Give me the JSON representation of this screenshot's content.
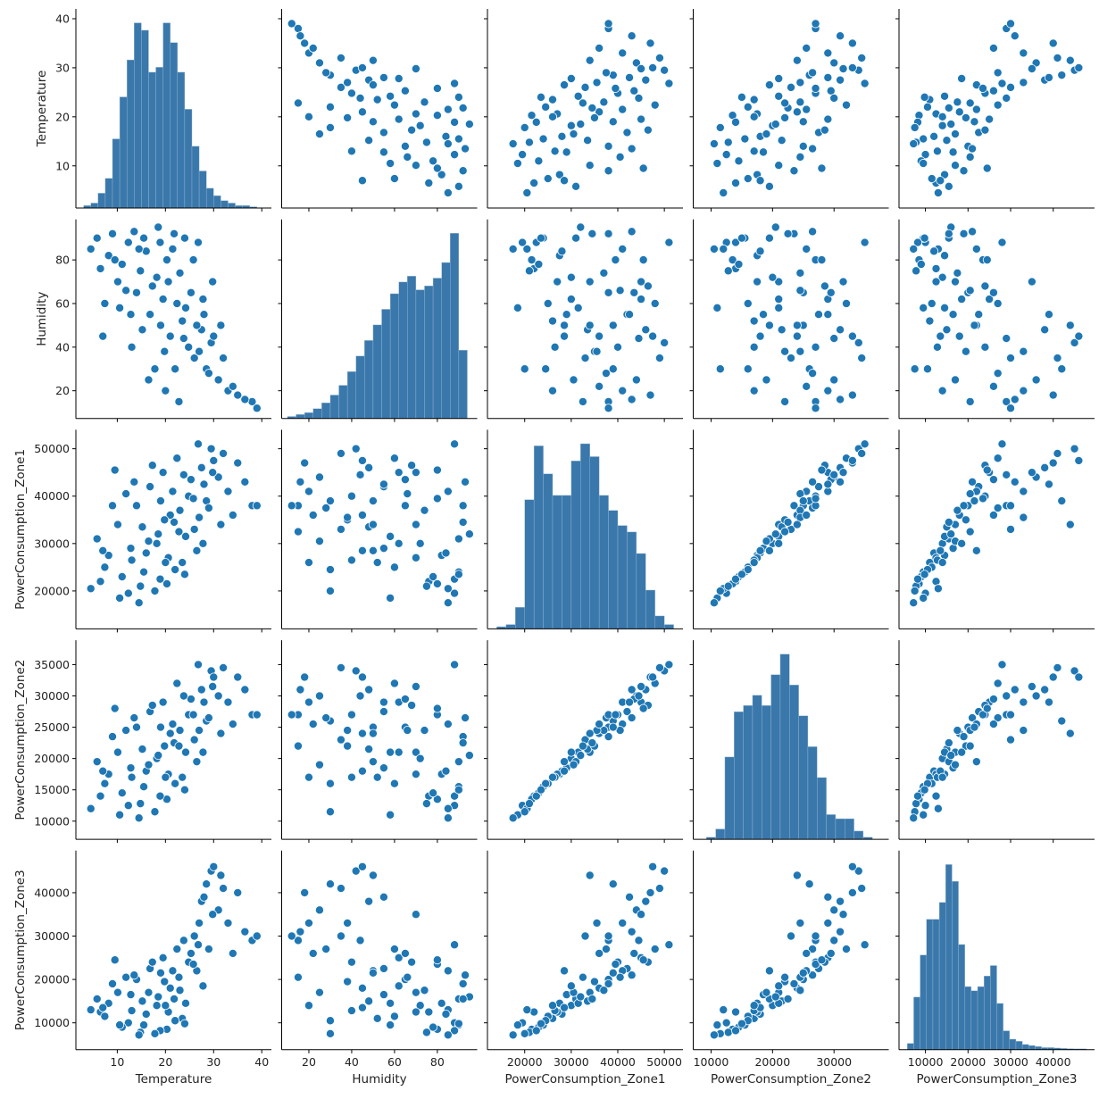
{
  "chart_data": {
    "type": "scatter",
    "kind": "pairplot",
    "diagonal": "histogram",
    "colors": {
      "marker": "#1f77b4",
      "marker_edge": "#ffffff",
      "hist": "#3a78ab",
      "axis": "#000000"
    },
    "grid": false,
    "variables": [
      {
        "name": "Temperature",
        "range": [
          1.4,
          42
        ],
        "ticks": [
          10,
          20,
          30,
          40
        ]
      },
      {
        "name": "Humidity",
        "range": [
          7.3,
          98.6
        ],
        "ticks": [
          20,
          40,
          60,
          80
        ]
      },
      {
        "name": "PowerConsumption_Zone1",
        "range": [
          12000,
          54000
        ],
        "ticks": [
          20000,
          30000,
          40000,
          50000
        ]
      },
      {
        "name": "PowerConsumption_Zone2",
        "range": [
          7100,
          38900
        ],
        "ticks": [
          10000,
          15000,
          20000,
          25000,
          30000,
          35000
        ],
        "x_ticks": [
          10000,
          20000,
          30000
        ]
      },
      {
        "name": "PowerConsumption_Zone3",
        "range": [
          3800,
          49700
        ],
        "ticks": [
          10000,
          20000,
          30000,
          40000
        ]
      }
    ],
    "rows": [
      [
        6.5,
        76,
        22000,
        14000,
        12500
      ],
      [
        8.2,
        82,
        27500,
        17500,
        14500
      ],
      [
        10.1,
        70,
        34000,
        21000,
        17000
      ],
      [
        12.3,
        88,
        19500,
        12500,
        10000
      ],
      [
        14.0,
        65,
        38000,
        25000,
        20000
      ],
      [
        15.5,
        90,
        24000,
        15500,
        9500
      ],
      [
        16.8,
        55,
        42000,
        27500,
        22500
      ],
      [
        18.2,
        72,
        30000,
        20000,
        14000
      ],
      [
        19.5,
        62,
        45000,
        29000,
        25000
      ],
      [
        20.3,
        80,
        21500,
        13500,
        8500
      ],
      [
        21.0,
        45,
        36000,
        24000,
        18000
      ],
      [
        22.4,
        60,
        48000,
        32000,
        27000
      ],
      [
        23.5,
        52,
        26000,
        17000,
        11000
      ],
      [
        24.8,
        40,
        40000,
        27000,
        24000
      ],
      [
        26.0,
        35,
        33000,
        23000,
        30000
      ],
      [
        27.5,
        48,
        46000,
        31000,
        38000
      ],
      [
        28.5,
        30,
        39000,
        26000,
        42000
      ],
      [
        29.5,
        42,
        50000,
        34000,
        45000
      ],
      [
        31.0,
        25,
        44000,
        30000,
        36000
      ],
      [
        33.0,
        20,
        41000,
        29000,
        33000
      ],
      [
        35.0,
        18,
        47000,
        33000,
        40000
      ],
      [
        38.0,
        15,
        38000,
        27000,
        29000
      ],
      [
        4.5,
        85,
        20500,
        12000,
        13000
      ],
      [
        5.8,
        90,
        31000,
        19500,
        15500
      ],
      [
        7.4,
        60,
        25000,
        16000,
        11500
      ],
      [
        9.0,
        92,
        38000,
        23500,
        19000
      ],
      [
        11.0,
        78,
        23000,
        14500,
        9000
      ],
      [
        12.8,
        55,
        29000,
        18500,
        16500
      ],
      [
        13.5,
        93,
        43000,
        26500,
        21000
      ],
      [
        14.8,
        75,
        21000,
        12800,
        7800
      ],
      [
        15.2,
        48,
        33500,
        21500,
        15000
      ],
      [
        16.0,
        84,
        28000,
        18000,
        12000
      ],
      [
        17.3,
        68,
        46500,
        28500,
        24000
      ],
      [
        18.9,
        88,
        22500,
        14000,
        8200
      ],
      [
        19.8,
        38,
        35000,
        22000,
        19500
      ],
      [
        20.6,
        70,
        27000,
        17500,
        12500
      ],
      [
        21.5,
        85,
        41000,
        25500,
        22000
      ],
      [
        22.0,
        30,
        24500,
        16000,
        10500
      ],
      [
        23.0,
        74,
        37000,
        24500,
        17500
      ],
      [
        24.2,
        58,
        31500,
        21000,
        14500
      ],
      [
        25.3,
        65,
        43500,
        29500,
        26000
      ],
      [
        26.5,
        50,
        28500,
        19500,
        22000
      ],
      [
        27.0,
        38,
        35500,
        24500,
        33000
      ],
      [
        28.0,
        55,
        42500,
        29000,
        39000
      ],
      [
        29.0,
        28,
        37500,
        26500,
        27000
      ],
      [
        30.0,
        45,
        47500,
        33000,
        46000
      ],
      [
        32.0,
        35,
        49000,
        34500,
        41000
      ],
      [
        34.0,
        22,
        36000,
        25500,
        26000
      ],
      [
        36.5,
        16,
        43000,
        31000,
        31000
      ],
      [
        39.0,
        12,
        38000,
        27000,
        30000
      ],
      [
        10.5,
        58,
        18500,
        11000,
        9500
      ],
      [
        13.0,
        40,
        26500,
        17000,
        12800
      ],
      [
        17.8,
        30,
        20000,
        11500,
        7500
      ],
      [
        18.5,
        95,
        32000,
        20500,
        16000
      ],
      [
        21.8,
        92,
        34500,
        22500,
        15500
      ],
      [
        24.0,
        90,
        23500,
        15000,
        9800
      ],
      [
        25.8,
        80,
        39500,
        27000,
        23500
      ],
      [
        7.0,
        45,
        28500,
        18000,
        13500
      ],
      [
        9.5,
        80,
        45500,
        28000,
        24500
      ],
      [
        16.5,
        25,
        30500,
        19000,
        17000
      ],
      [
        20.0,
        20,
        26000,
        17000,
        14000
      ],
      [
        22.8,
        15,
        32500,
        22000,
        20500
      ],
      [
        26.8,
        88,
        51000,
        35000,
        28000
      ],
      [
        29.8,
        70,
        45000,
        31500,
        35000
      ],
      [
        11.8,
        66,
        40500,
        24500,
        20500
      ],
      [
        14.5,
        85,
        17500,
        10500,
        7200
      ],
      [
        19.0,
        50,
        39000,
        25000,
        21500
      ],
      [
        23.8,
        44,
        44500,
        30000,
        29000
      ],
      [
        27.8,
        62,
        30000,
        21000,
        18500
      ],
      [
        31.5,
        50,
        34000,
        24000,
        44000
      ]
    ],
    "diag_hist": [
      {
        "bin_start": 3,
        "bin_width": 1.5,
        "counts": [
          10,
          20,
          60,
          120,
          280,
          450,
          600,
          750,
          720,
          550,
          570,
          750,
          670,
          550,
          400,
          250,
          150,
          80,
          50,
          30,
          20,
          10,
          10,
          5
        ]
      },
      {
        "bin_start": 10,
        "bin_width": 4,
        "counts": [
          10,
          20,
          30,
          50,
          80,
          120,
          170,
          240,
          320,
          400,
          480,
          560,
          640,
          700,
          730,
          660,
          680,
          720,
          800,
          950,
          350
        ]
      },
      {
        "bin_start": 14000,
        "bin_width": 2000,
        "counts": [
          10,
          20,
          100,
          600,
          850,
          720,
          620,
          620,
          780,
          860,
          800,
          620,
          550,
          480,
          450,
          350,
          180,
          60,
          20
        ]
      },
      {
        "bin_start": 9250,
        "bin_width": 1500,
        "counts": [
          10,
          50,
          400,
          620,
          650,
          700,
          650,
          800,
          900,
          750,
          600,
          450,
          300,
          120,
          100,
          100,
          40,
          10
        ]
      },
      {
        "bin_start": 5750,
        "bin_width": 1500,
        "counts": [
          30,
          250,
          450,
          620,
          620,
          700,
          880,
          800,
          500,
          300,
          280,
          300,
          350,
          400,
          220,
          90,
          50,
          40,
          25,
          20,
          15,
          10,
          10,
          8,
          6,
          5,
          4,
          4
        ]
      }
    ]
  }
}
